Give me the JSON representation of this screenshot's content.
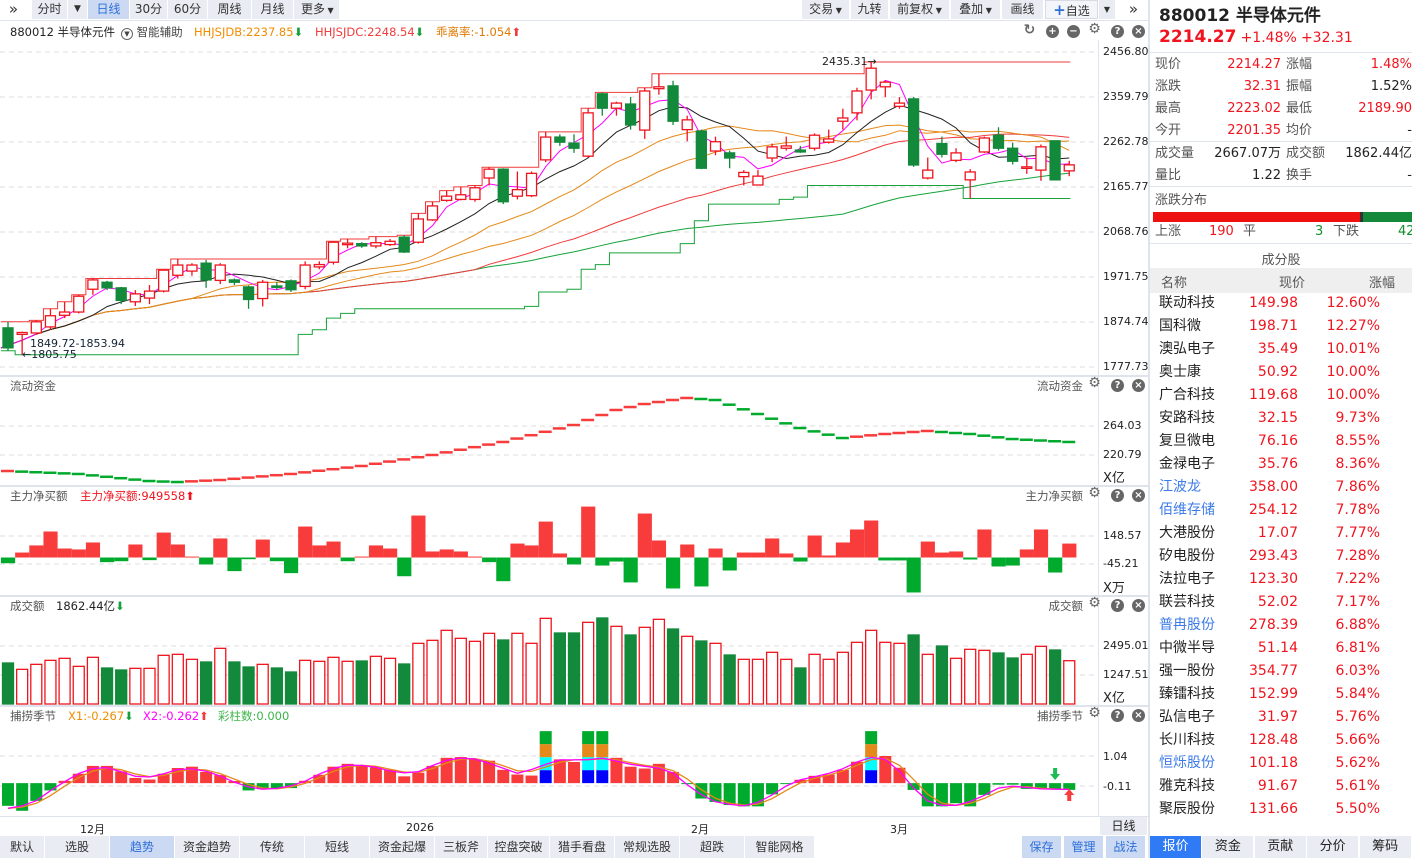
{
  "toolbar": {
    "left": [
      {
        "label": "分时",
        "active": false
      },
      {
        "label": "日线",
        "active": true
      },
      {
        "label": "30分",
        "active": false
      },
      {
        "label": "60分",
        "active": false
      },
      {
        "label": "周线",
        "active": false
      },
      {
        "label": "月线",
        "active": false
      },
      {
        "label": "更多",
        "active": false
      }
    ],
    "right": [
      "交易",
      "九转",
      "前复权",
      "叠加",
      "画线"
    ],
    "add_watch": "自选"
  },
  "chart_header": {
    "title": "880012 半导体元件",
    "assist": "智能辅助",
    "hhjsjdb": "HHJSJDB:2237.85",
    "hhjsjdc": "HHJSJDC:2248.54",
    "bias": "乖离率:-1.054"
  },
  "panels": {
    "flow": {
      "label": "流动资金",
      "right_label": "流动资金",
      "axis": [
        "264.03",
        "220.79"
      ],
      "unit": "X亿"
    },
    "netbuy": {
      "label": "主力净买额",
      "value": "主力净买额:949558",
      "right_label": "主力净买额",
      "axis": [
        "148.57",
        "-45.21"
      ],
      "unit": "X万"
    },
    "amount": {
      "label": "成交额",
      "value": "1862.44亿",
      "right_label": "成交额",
      "axis": [
        "2495.01",
        "1247.51"
      ],
      "unit": "X亿"
    },
    "season": {
      "label": "捕捞季节",
      "x1": "X1:-0.267",
      "x2": "X2:-0.262",
      "bars": "彩柱数:0.000",
      "right_label": "捕捞季节",
      "axis": [
        "1.04",
        "-0.11"
      ]
    }
  },
  "price_axis": [
    "2456.80",
    "2359.79",
    "2262.78",
    "2165.77",
    "2068.76",
    "1971.75",
    "1874.74",
    "1777.73"
  ],
  "annotations": {
    "high": "2435.31",
    "low": "1805.75",
    "low_range": "1849.72-1853.94"
  },
  "date_axis": [
    "12月",
    "2026",
    "2月",
    "3月"
  ],
  "period_label": "日线",
  "colors": {
    "up": "#f0141e",
    "down": "#13893b",
    "bar_up": "#f83c3c",
    "bar_down": "#00aa2c",
    "ma_fast": "#ff00ff",
    "ma5": "#222222",
    "ma_orange": "#e5891a",
    "ma_red": "#f03a3a",
    "long_green": "#17a33a"
  },
  "chart_data": {
    "type": "candlestick",
    "candles_format": [
      "open",
      "close",
      "high",
      "low"
    ],
    "candles": [
      [
        1864,
        1821,
        1877,
        1815
      ],
      [
        1850,
        1854,
        1856,
        1806
      ],
      [
        1853,
        1877,
        1880,
        1850
      ],
      [
        1866,
        1890,
        1905,
        1860
      ],
      [
        1891,
        1898,
        1920,
        1885
      ],
      [
        1898,
        1932,
        1935,
        1895
      ],
      [
        1947,
        1967,
        1970,
        1935
      ],
      [
        1962,
        1950,
        1965,
        1945
      ],
      [
        1950,
        1923,
        1952,
        1915
      ],
      [
        1920,
        1937,
        1945,
        1911
      ],
      [
        1928,
        1943,
        1956,
        1915
      ],
      [
        1943,
        1988,
        1990,
        1940
      ],
      [
        1977,
        1999,
        2012,
        1970
      ],
      [
        1986,
        1999,
        2003,
        1976
      ],
      [
        2003,
        1967,
        2010,
        1950
      ],
      [
        1966,
        1999,
        2003,
        1958
      ],
      [
        1967,
        1962,
        1970,
        1956
      ],
      [
        1952,
        1925,
        1955,
        1905
      ],
      [
        1927,
        1962,
        1967,
        1910
      ],
      [
        1954,
        1951,
        1962,
        1946
      ],
      [
        1965,
        1946,
        1968,
        1941
      ],
      [
        1953,
        1999,
        2007,
        1947
      ],
      [
        1995,
        2000,
        2007,
        1990
      ],
      [
        2005,
        2048,
        2050,
        2000
      ],
      [
        2043,
        2046,
        2055,
        2035
      ],
      [
        2045,
        2040,
        2048,
        2036
      ],
      [
        2040,
        2047,
        2060,
        2035
      ],
      [
        2043,
        2050,
        2055,
        2040
      ],
      [
        2059,
        2027,
        2063,
        2025
      ],
      [
        2048,
        2098,
        2110,
        2045
      ],
      [
        2096,
        2126,
        2135,
        2094
      ],
      [
        2138,
        2147,
        2159,
        2135
      ],
      [
        2140,
        2150,
        2167,
        2138
      ],
      [
        2140,
        2165,
        2170,
        2135
      ],
      [
        2186,
        2205,
        2209,
        2170
      ],
      [
        2205,
        2135,
        2207,
        2130
      ],
      [
        2147,
        2161,
        2200,
        2140
      ],
      [
        2148,
        2196,
        2200,
        2145
      ],
      [
        2225,
        2274,
        2285,
        2220
      ],
      [
        2274,
        2263,
        2280,
        2255
      ],
      [
        2261,
        2250,
        2280,
        2240
      ],
      [
        2233,
        2326,
        2336,
        2230
      ],
      [
        2367,
        2336,
        2370,
        2320
      ],
      [
        2336,
        2347,
        2350,
        2320
      ],
      [
        2345,
        2300,
        2360,
        2290
      ],
      [
        2289,
        2373,
        2380,
        2270
      ],
      [
        2378,
        2382,
        2410,
        2365
      ],
      [
        2384,
        2308,
        2395,
        2300
      ],
      [
        2290,
        2311,
        2320,
        2265
      ],
      [
        2287,
        2207,
        2290,
        2205
      ],
      [
        2244,
        2264,
        2275,
        2235
      ],
      [
        2240,
        2229,
        2245,
        2207
      ],
      [
        2189,
        2198,
        2203,
        2170
      ],
      [
        2171,
        2190,
        2203,
        2170
      ],
      [
        2229,
        2253,
        2260,
        2220
      ],
      [
        2250,
        2255,
        2275,
        2245
      ],
      [
        2246,
        2242,
        2255,
        2240
      ],
      [
        2250,
        2278,
        2282,
        2245
      ],
      [
        2263,
        2270,
        2290,
        2260
      ],
      [
        2308,
        2315,
        2335,
        2290
      ],
      [
        2326,
        2373,
        2380,
        2310
      ],
      [
        2375,
        2422,
        2435.31,
        2355
      ],
      [
        2382,
        2392,
        2395,
        2360
      ],
      [
        2340,
        2347,
        2360,
        2335
      ],
      [
        2356,
        2214,
        2360,
        2210
      ],
      [
        2186,
        2203,
        2230,
        2183
      ],
      [
        2260,
        2237,
        2275,
        2230
      ],
      [
        2224,
        2240,
        2250,
        2220
      ],
      [
        2182,
        2199,
        2205,
        2142
      ],
      [
        2242,
        2272,
        2275,
        2240
      ],
      [
        2278,
        2250,
        2295,
        2245
      ],
      [
        2250,
        2222,
        2262,
        2215
      ],
      [
        2207,
        2210,
        2230,
        2195
      ],
      [
        2203,
        2253,
        2258,
        2180
      ],
      [
        2266,
        2182,
        2266,
        2182
      ],
      [
        2201.35,
        2214.27,
        2223.02,
        2189.9
      ]
    ],
    "ylim": [
      1777.73,
      2456.8
    ],
    "flow": [
      196.9,
      196.0,
      195.1,
      194.3,
      193.4,
      192.5,
      190.4,
      188.3,
      186.2,
      184.1,
      182.0,
      181.2,
      180.5,
      181.5,
      182.5,
      183.5,
      185.3,
      187.1,
      188.9,
      190.7,
      192.5,
      194.9,
      197.3,
      199.6,
      202.0,
      204.4,
      207.7,
      211.0,
      214.2,
      217.5,
      220.8,
      224.7,
      228.6,
      232.5,
      236.3,
      240.2,
      245.3,
      250.3,
      255.4,
      260.4,
      265.5,
      273.0,
      280.4,
      287.9,
      292.3,
      296.8,
      299.8,
      302.8,
      305.8,
      304.3,
      302.8,
      295.8,
      288.9,
      281.9,
      274.9,
      268.0,
      261.0,
      256.0,
      251.1,
      246.1,
      248.1,
      250.1,
      252.1,
      253.6,
      255.1,
      256.6,
      255.1,
      253.6,
      252.1,
      249.6,
      247.1,
      244.6,
      243.5,
      242.4,
      241.3,
      240.2
    ],
    "netbuy": [
      -37,
      32,
      78,
      168,
      58,
      52,
      97,
      -30,
      -24,
      84,
      -17,
      161,
      84,
      6,
      -45,
      123,
      -88,
      -11,
      116,
      -24,
      -101,
      200,
      78,
      103,
      -24,
      6,
      78,
      58,
      -121,
      271,
      39,
      52,
      39,
      6,
      -30,
      -153,
      90,
      78,
      232,
      26,
      -45,
      329,
      -52,
      -26,
      -161,
      284,
      110,
      -200,
      84,
      -187,
      58,
      -84,
      32,
      32,
      123,
      26,
      -26,
      142,
      13,
      97,
      181,
      239,
      -19,
      -19,
      -226,
      103,
      32,
      39,
      -13,
      181,
      -58,
      -52,
      52,
      181,
      -97,
      90
    ],
    "amount": [
      1764,
      1491,
      1706,
      1878,
      1965,
      1620,
      2008,
      1549,
      1463,
      1534,
      1534,
      2094,
      2137,
      1922,
      1807,
      2395,
      1807,
      1592,
      1706,
      1549,
      1377,
      1878,
      1836,
      2008,
      1836,
      1850,
      2051,
      1965,
      1721,
      2610,
      2739,
      3169,
      2825,
      2696,
      3040,
      2753,
      3040,
      2610,
      3685,
      3054,
      3054,
      3513,
      3700,
      3341,
      2968,
      3298,
      3642,
      3226,
      2911,
      2710,
      2610,
      2108,
      1922,
      1922,
      2223,
      1922,
      1549,
      2137,
      1922,
      2223,
      2653,
      3169,
      2653,
      2610,
      2968,
      2137,
      2495,
      1965,
      2352,
      2309,
      2194,
      1979,
      2137,
      2481,
      2323,
      1862.44
    ],
    "season": [
      -0.87,
      -1.06,
      -0.68,
      -0.28,
      0.09,
      0.36,
      0.66,
      0.66,
      0.45,
      0.2,
      0.14,
      0.36,
      0.58,
      0.63,
      0.43,
      0.31,
      0.08,
      -0.28,
      -0.23,
      -0.19,
      -0.19,
      0.09,
      0.32,
      0.63,
      0.74,
      0.69,
      0.61,
      0.52,
      0.26,
      0.4,
      0.66,
      0.97,
      1.0,
      0.91,
      0.86,
      0.51,
      0.33,
      0.29,
      0.95,
      0.91,
      0.81,
      0.95,
      0.95,
      0.97,
      0.63,
      0.56,
      0.74,
      0.43,
      -0.02,
      -0.59,
      -0.72,
      -0.84,
      -0.89,
      -0.89,
      -0.43,
      -0.03,
      0.13,
      0.28,
      0.33,
      0.51,
      0.82,
      1.1,
      1.04,
      0.59,
      -0.26,
      -0.89,
      -0.89,
      -0.77,
      -0.89,
      -0.45,
      -0.06,
      -0.06,
      -0.22,
      -0.22,
      -0.22,
      -0.26
    ],
    "season_color_bars": [
      38,
      41,
      42,
      61
    ],
    "season_signal_down": 74,
    "season_signal_up": 75
  },
  "quote": {
    "title": "880012 半导体元件",
    "price": "2214.27",
    "pct": "+1.48%",
    "change": "+32.31",
    "fields": [
      {
        "l1": "现价",
        "v1": "2214.27",
        "c1": "red",
        "l2": "涨幅",
        "v2": "1.48%",
        "c2": "red"
      },
      {
        "l1": "涨跌",
        "v1": "32.31",
        "c1": "red",
        "l2": "振幅",
        "v2": "1.52%",
        "c2": "blk"
      },
      {
        "l1": "最高",
        "v1": "2223.02",
        "c1": "red",
        "l2": "最低",
        "v2": "2189.90",
        "c2": "red"
      },
      {
        "l1": "今开",
        "v1": "2201.35",
        "c1": "red",
        "l2": "均价",
        "v2": "-",
        "c2": "blk"
      },
      {
        "l1": "成交量",
        "v1": "2667.07万",
        "c1": "blk",
        "l2": "成交额",
        "v2": "1862.44亿",
        "c2": "blk"
      },
      {
        "l1": "量比",
        "v1": "1.22",
        "c1": "blk",
        "l2": "换手",
        "v2": "-",
        "c2": "blk"
      }
    ],
    "dist_title": "涨跌分布",
    "up_label": "上涨",
    "up": "190",
    "flat_label": "平",
    "flat": "3",
    "down_label": "下跌",
    "down": "42",
    "up_frac": 0.809
  },
  "constituents": {
    "title": "成分股",
    "headers": [
      "名称",
      "现价",
      "涨幅"
    ],
    "rows": [
      {
        "name": "联动科技",
        "price": "149.98",
        "pct": "12.60%",
        "link": false
      },
      {
        "name": "国科微",
        "price": "198.71",
        "pct": "12.27%",
        "link": false
      },
      {
        "name": "澳弘电子",
        "price": "35.49",
        "pct": "10.01%",
        "link": false
      },
      {
        "name": "奥士康",
        "price": "50.92",
        "pct": "10.00%",
        "link": false
      },
      {
        "name": "广合科技",
        "price": "119.68",
        "pct": "10.00%",
        "link": false
      },
      {
        "name": "安路科技",
        "price": "32.15",
        "pct": "9.73%",
        "link": false
      },
      {
        "name": "复旦微电",
        "price": "76.16",
        "pct": "8.55%",
        "link": false
      },
      {
        "name": "金禄电子",
        "price": "35.76",
        "pct": "8.36%",
        "link": false
      },
      {
        "name": "江波龙",
        "price": "358.00",
        "pct": "7.86%",
        "link": true
      },
      {
        "name": "佰维存储",
        "price": "254.12",
        "pct": "7.78%",
        "link": true
      },
      {
        "name": "大港股份",
        "price": "17.07",
        "pct": "7.77%",
        "link": false
      },
      {
        "name": "矽电股份",
        "price": "293.43",
        "pct": "7.28%",
        "link": false
      },
      {
        "name": "法拉电子",
        "price": "123.30",
        "pct": "7.22%",
        "link": false
      },
      {
        "name": "联芸科技",
        "price": "52.02",
        "pct": "7.17%",
        "link": false
      },
      {
        "name": "普冉股份",
        "price": "278.39",
        "pct": "6.88%",
        "link": true
      },
      {
        "name": "中微半导",
        "price": "51.14",
        "pct": "6.81%",
        "link": false
      },
      {
        "name": "强一股份",
        "price": "354.77",
        "pct": "6.03%",
        "link": false
      },
      {
        "name": "臻镭科技",
        "price": "152.99",
        "pct": "5.84%",
        "link": false
      },
      {
        "name": "弘信电子",
        "price": "31.97",
        "pct": "5.76%",
        "link": false
      },
      {
        "name": "长川科技",
        "price": "128.48",
        "pct": "5.66%",
        "link": false
      },
      {
        "name": "恒烁股份",
        "price": "101.18",
        "pct": "5.62%",
        "link": true
      },
      {
        "name": "雅克科技",
        "price": "91.67",
        "pct": "5.61%",
        "link": false
      },
      {
        "name": "聚辰股份",
        "price": "131.66",
        "pct": "5.50%",
        "link": false
      }
    ]
  },
  "bottom_tabs": [
    "默认",
    "选股",
    "趋势",
    "资金趋势",
    "传统",
    "短线",
    "资金起爆",
    "三板斧",
    "控盘突破",
    "猎手看盘",
    "常规选股",
    "超跌",
    "智能网格"
  ],
  "bottom_active": "趋势",
  "bottom_right": [
    "保存",
    "管理",
    "战法"
  ],
  "right_tabs": [
    "报价",
    "资金",
    "贡献",
    "分价",
    "筹码"
  ],
  "right_active": "报价"
}
